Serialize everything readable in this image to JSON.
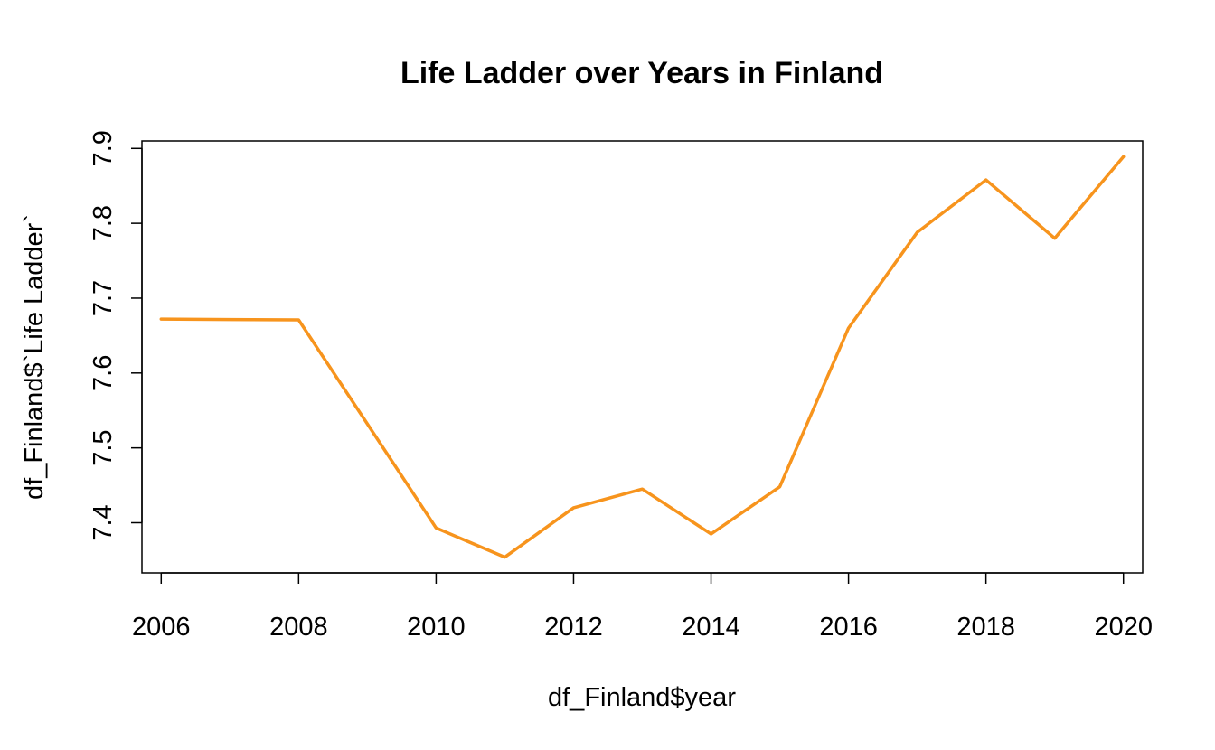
{
  "chart_data": {
    "type": "line",
    "title": "Life Ladder over Years in Finland",
    "xlabel": "df_Finland$year",
    "ylabel": "df_Finland$`Life Ladder`",
    "x": [
      2006,
      2008,
      2010,
      2011,
      2012,
      2013,
      2014,
      2015,
      2016,
      2017,
      2018,
      2019,
      2020
    ],
    "series": [
      {
        "values": [
          7.672,
          7.671,
          7.393,
          7.354,
          7.42,
          7.445,
          7.385,
          7.448,
          7.66,
          7.788,
          7.858,
          7.78,
          7.889
        ],
        "color": "#F7941D"
      }
    ],
    "xlim": [
      2005.72,
      2020.28
    ],
    "ylim": [
      7.333,
      7.91
    ],
    "x_ticks": [
      "2006",
      "2008",
      "2010",
      "2012",
      "2014",
      "2016",
      "2018",
      "2020"
    ],
    "y_ticks": [
      "7.4",
      "7.5",
      "7.6",
      "7.7",
      "7.8",
      "7.9"
    ],
    "grid": false,
    "legend": "none"
  }
}
